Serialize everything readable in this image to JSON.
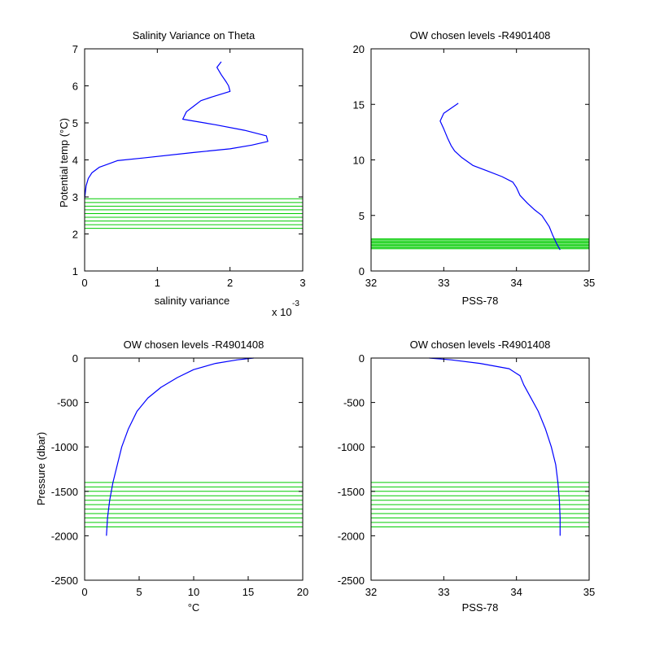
{
  "figure": {
    "background": "#ffffff",
    "axis_color": "#000000"
  },
  "chart_data": [
    {
      "type": "line",
      "title": "Salinity Variance on Theta",
      "xlabel": "salinity variance",
      "xscale_note": "x 10",
      "xscale_exponent": "-3",
      "ylabel": "Potential temp (°C)",
      "xlim": [
        0,
        3
      ],
      "ylim": [
        1,
        7
      ],
      "xticks": [
        0,
        1,
        2,
        3
      ],
      "yticks": [
        1,
        2,
        3,
        4,
        5,
        6,
        7
      ],
      "series": [
        {
          "color": "#0000ff",
          "points": [
            [
              0.0,
              2.95
            ],
            [
              0.02,
              3.3
            ],
            [
              0.05,
              3.5
            ],
            [
              0.1,
              3.65
            ],
            [
              0.2,
              3.8
            ],
            [
              0.45,
              3.98
            ],
            [
              0.8,
              4.05
            ],
            [
              1.5,
              4.2
            ],
            [
              2.0,
              4.3
            ],
            [
              2.3,
              4.4
            ],
            [
              2.52,
              4.5
            ],
            [
              2.5,
              4.65
            ],
            [
              2.2,
              4.8
            ],
            [
              1.8,
              4.95
            ],
            [
              1.35,
              5.1
            ],
            [
              1.4,
              5.3
            ],
            [
              1.5,
              5.45
            ],
            [
              1.6,
              5.6
            ],
            [
              1.75,
              5.7
            ],
            [
              2.0,
              5.85
            ],
            [
              1.98,
              6.0
            ],
            [
              1.95,
              6.1
            ],
            [
              1.88,
              6.3
            ],
            [
              1.82,
              6.5
            ],
            [
              1.88,
              6.65
            ]
          ]
        }
      ],
      "chosen_levels": {
        "color": "#00cc00",
        "values": [
          2.15,
          2.25,
          2.35,
          2.45,
          2.55,
          2.65,
          2.75,
          2.85,
          2.95
        ]
      }
    },
    {
      "type": "line",
      "title": "OW chosen levels -R4901408",
      "xlabel": "PSS-78",
      "ylabel": "",
      "xlim": [
        32,
        35
      ],
      "ylim": [
        0,
        20
      ],
      "xticks": [
        32,
        33,
        34,
        35
      ],
      "yticks": [
        0,
        5,
        10,
        15,
        20
      ],
      "series": [
        {
          "color": "#0000ff",
          "points": [
            [
              34.6,
              1.9
            ],
            [
              34.55,
              2.5
            ],
            [
              34.5,
              3.2
            ],
            [
              34.45,
              4.0
            ],
            [
              34.4,
              4.5
            ],
            [
              34.35,
              5.0
            ],
            [
              34.25,
              5.5
            ],
            [
              34.15,
              6.1
            ],
            [
              34.05,
              6.8
            ],
            [
              34.0,
              7.5
            ],
            [
              33.95,
              8.0
            ],
            [
              33.8,
              8.5
            ],
            [
              33.6,
              9.0
            ],
            [
              33.4,
              9.5
            ],
            [
              33.25,
              10.2
            ],
            [
              33.15,
              10.8
            ],
            [
              33.1,
              11.3
            ],
            [
              33.05,
              12.0
            ],
            [
              33.0,
              12.8
            ],
            [
              32.95,
              13.5
            ],
            [
              33.0,
              14.2
            ],
            [
              33.2,
              15.1
            ]
          ]
        }
      ],
      "chosen_levels": {
        "color": "#00cc00",
        "values": [
          2.0,
          2.1,
          2.2,
          2.3,
          2.4,
          2.5,
          2.6,
          2.7,
          2.8,
          2.9
        ]
      }
    },
    {
      "type": "line",
      "title": "OW chosen levels -R4901408",
      "xlabel": "°C",
      "ylabel": "Pressure (dbar)",
      "xlim": [
        0,
        20
      ],
      "ylim": [
        -2500,
        0
      ],
      "xticks": [
        0,
        5,
        10,
        15,
        20
      ],
      "yticks": [
        -2500,
        -2000,
        -1500,
        -1000,
        -500,
        0
      ],
      "series": [
        {
          "color": "#0000ff",
          "points": [
            [
              2.0,
              -2000
            ],
            [
              2.1,
              -1800
            ],
            [
              2.3,
              -1600
            ],
            [
              2.6,
              -1400
            ],
            [
              3.0,
              -1200
            ],
            [
              3.4,
              -1000
            ],
            [
              4.0,
              -800
            ],
            [
              4.8,
              -600
            ],
            [
              5.8,
              -450
            ],
            [
              7.0,
              -330
            ],
            [
              8.5,
              -220
            ],
            [
              10.0,
              -130
            ],
            [
              12.0,
              -60
            ],
            [
              14.0,
              -20
            ],
            [
              15.5,
              0
            ]
          ]
        }
      ],
      "chosen_levels": {
        "color": "#00cc00",
        "values": [
          -1400,
          -1450,
          -1500,
          -1550,
          -1600,
          -1650,
          -1700,
          -1750,
          -1800,
          -1850,
          -1900
        ]
      }
    },
    {
      "type": "line",
      "title": "OW chosen levels -R4901408",
      "xlabel": "PSS-78",
      "ylabel": "",
      "xlim": [
        32,
        35
      ],
      "ylim": [
        -2500,
        0
      ],
      "xticks": [
        32,
        33,
        34,
        35
      ],
      "yticks": [
        -2500,
        -2000,
        -1500,
        -1000,
        -500,
        0
      ],
      "series": [
        {
          "color": "#0000ff",
          "points": [
            [
              32.8,
              0
            ],
            [
              33.1,
              -20
            ],
            [
              33.5,
              -60
            ],
            [
              33.9,
              -120
            ],
            [
              34.05,
              -200
            ],
            [
              34.1,
              -300
            ],
            [
              34.2,
              -450
            ],
            [
              34.3,
              -600
            ],
            [
              34.4,
              -800
            ],
            [
              34.48,
              -1000
            ],
            [
              34.54,
              -1200
            ],
            [
              34.57,
              -1400
            ],
            [
              34.59,
              -1600
            ],
            [
              34.6,
              -1800
            ],
            [
              34.6,
              -2000
            ]
          ]
        }
      ],
      "chosen_levels": {
        "color": "#00cc00",
        "values": [
          -1400,
          -1450,
          -1500,
          -1550,
          -1600,
          -1650,
          -1700,
          -1750,
          -1800,
          -1850,
          -1900
        ]
      }
    }
  ]
}
